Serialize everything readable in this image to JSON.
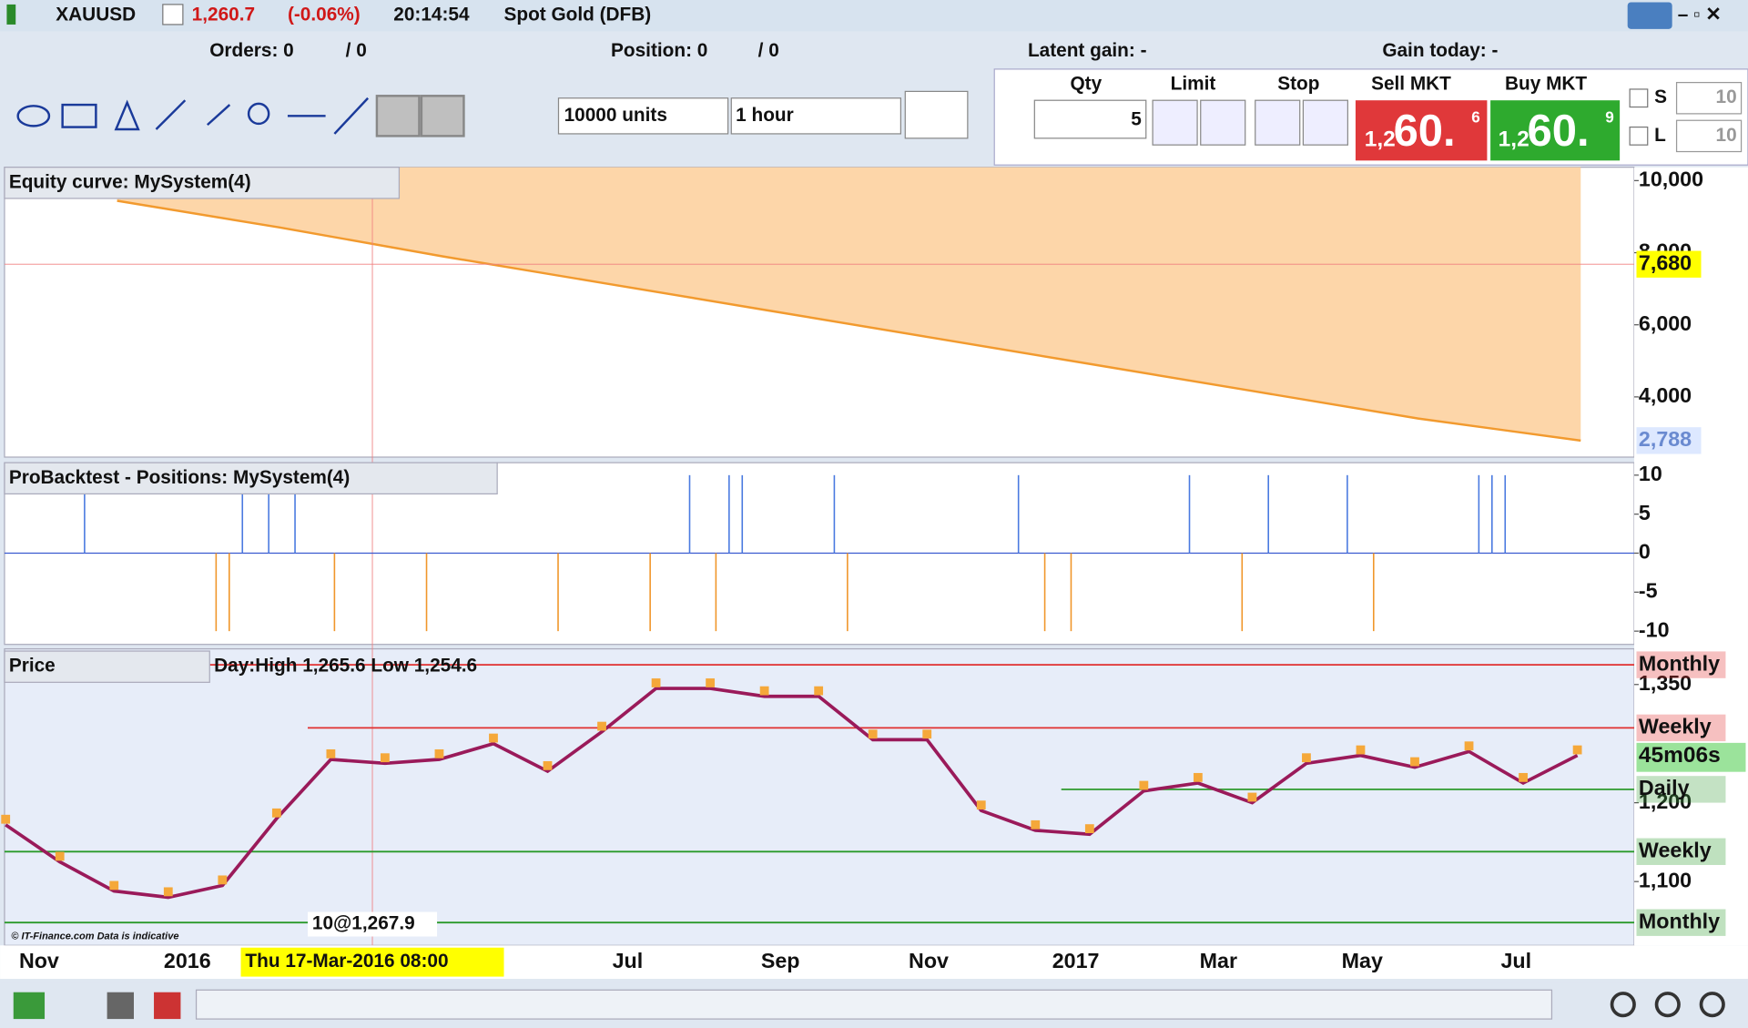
{
  "header": {
    "symbol": "XAUUSD",
    "price": "1,260.7",
    "change": "(-0.06%)",
    "time": "20:14:54",
    "name": "Spot Gold (DFB)"
  },
  "status": {
    "orders": "Orders: 0",
    "orders_total": "/ 0",
    "position": "Position: 0",
    "position_total": "/ 0",
    "latent_gain": "Latent gain: -",
    "gain_today": "Gain today: -"
  },
  "toolbar": {
    "units": "10000 units",
    "timeframe": "1 hour"
  },
  "order_panel": {
    "qty_label": "Qty",
    "qty": "5",
    "limit": "Limit",
    "stop": "Stop",
    "sell_label": "Sell MKT",
    "sell_prefix": "1,2",
    "sell_big": "60.",
    "sell_sup": "6",
    "buy_label": "Buy MKT",
    "buy_prefix": "1,2",
    "buy_big": "60.",
    "buy_sup": "9",
    "s_label": "S",
    "s_value": "10",
    "l_label": "L",
    "l_value": "10"
  },
  "equity_panel": {
    "title": "Equity curve: MySystem(4)",
    "ylim": [
      2330,
      10371
    ],
    "yticks": [
      {
        "value": 10000,
        "label": "10,000"
      },
      {
        "value": 8000,
        "label": "8,000"
      },
      {
        "value": 6000,
        "label": "6,000"
      },
      {
        "value": 4000,
        "label": "4,000"
      }
    ],
    "cursor": {
      "value": 7680,
      "label": "7,680"
    },
    "last": {
      "value": 2788,
      "label": "2,788"
    },
    "values": [
      9440,
      8700,
      7900,
      7150,
      6400,
      5650,
      4900,
      4150,
      3400,
      2788
    ]
  },
  "positions_panel": {
    "title": "ProBacktest - Positions: MySystem(4)",
    "ylim": [
      -11.7,
      11.6
    ],
    "yticks": [
      10,
      5,
      0,
      -5,
      -10
    ],
    "values": [
      0,
      0,
      0,
      0,
      0,
      0,
      10,
      0,
      0,
      0,
      0,
      0,
      0,
      0,
      0,
      0,
      -10,
      -10,
      10,
      0,
      10,
      0,
      10,
      0,
      0,
      -10,
      0,
      0,
      0,
      0,
      0,
      0,
      -10,
      0,
      0,
      0,
      0,
      0,
      0,
      0,
      0,
      0,
      -10,
      0,
      0,
      0,
      0,
      0,
      0,
      -10,
      0,
      0,
      10,
      0,
      -10,
      10,
      10,
      0,
      0,
      0,
      0,
      0,
      0,
      10,
      -10,
      0,
      0,
      0,
      0,
      0,
      0,
      0,
      0,
      0,
      0,
      0,
      0,
      10,
      0,
      -10,
      0,
      -10,
      0,
      0,
      0,
      0,
      0,
      0,
      0,
      0,
      10,
      0,
      0,
      0,
      -10,
      0,
      10,
      0,
      0,
      0,
      0,
      0,
      10,
      0,
      -10,
      0,
      0,
      0,
      0,
      0,
      0,
      0,
      10,
      10,
      10,
      0,
      0,
      0,
      0,
      0
    ]
  },
  "price_panel": {
    "title": "Price",
    "day_info": "Day:High 1,265.6 Low 1,254.6",
    "cursor_label": "10@1,267.9",
    "ylim": [
      1019,
      1391
    ],
    "yticks": [
      {
        "value": 1350,
        "label": "1,350"
      },
      {
        "value": 1200,
        "label": "1,200"
      },
      {
        "value": 1100,
        "label": "1,100"
      }
    ],
    "levels": [
      {
        "label": "Monthly",
        "value": 1375,
        "color": "#e03030"
      },
      {
        "label": "Weekly",
        "value": 1295,
        "color": "#e03030"
      },
      {
        "label": "Daily",
        "value": 1217,
        "color": "#3aa03a"
      },
      {
        "label": "Weekly",
        "value": 1138,
        "color": "#2a9a2a"
      },
      {
        "label": "Monthly",
        "value": 1048,
        "color": "#2a9a2a"
      }
    ],
    "timer": "45m06s",
    "timer_value": 1259,
    "values": [
      1172,
      1125,
      1088,
      1080,
      1095,
      1180,
      1255,
      1250,
      1255,
      1275,
      1240,
      1290,
      1345,
      1345,
      1335,
      1335,
      1280,
      1280,
      1190,
      1165,
      1160,
      1215,
      1225,
      1200,
      1250,
      1260,
      1245,
      1265,
      1225,
      1260
    ]
  },
  "x_axis": {
    "labels": [
      "Nov",
      "2016",
      "Jul",
      "Sep",
      "Nov",
      "2017",
      "Mar",
      "May",
      "Jul"
    ],
    "cursor": "Thu 17-Mar-2016 08:00"
  },
  "footer": {
    "copyright": "© IT-Finance.com Data is indicative"
  }
}
